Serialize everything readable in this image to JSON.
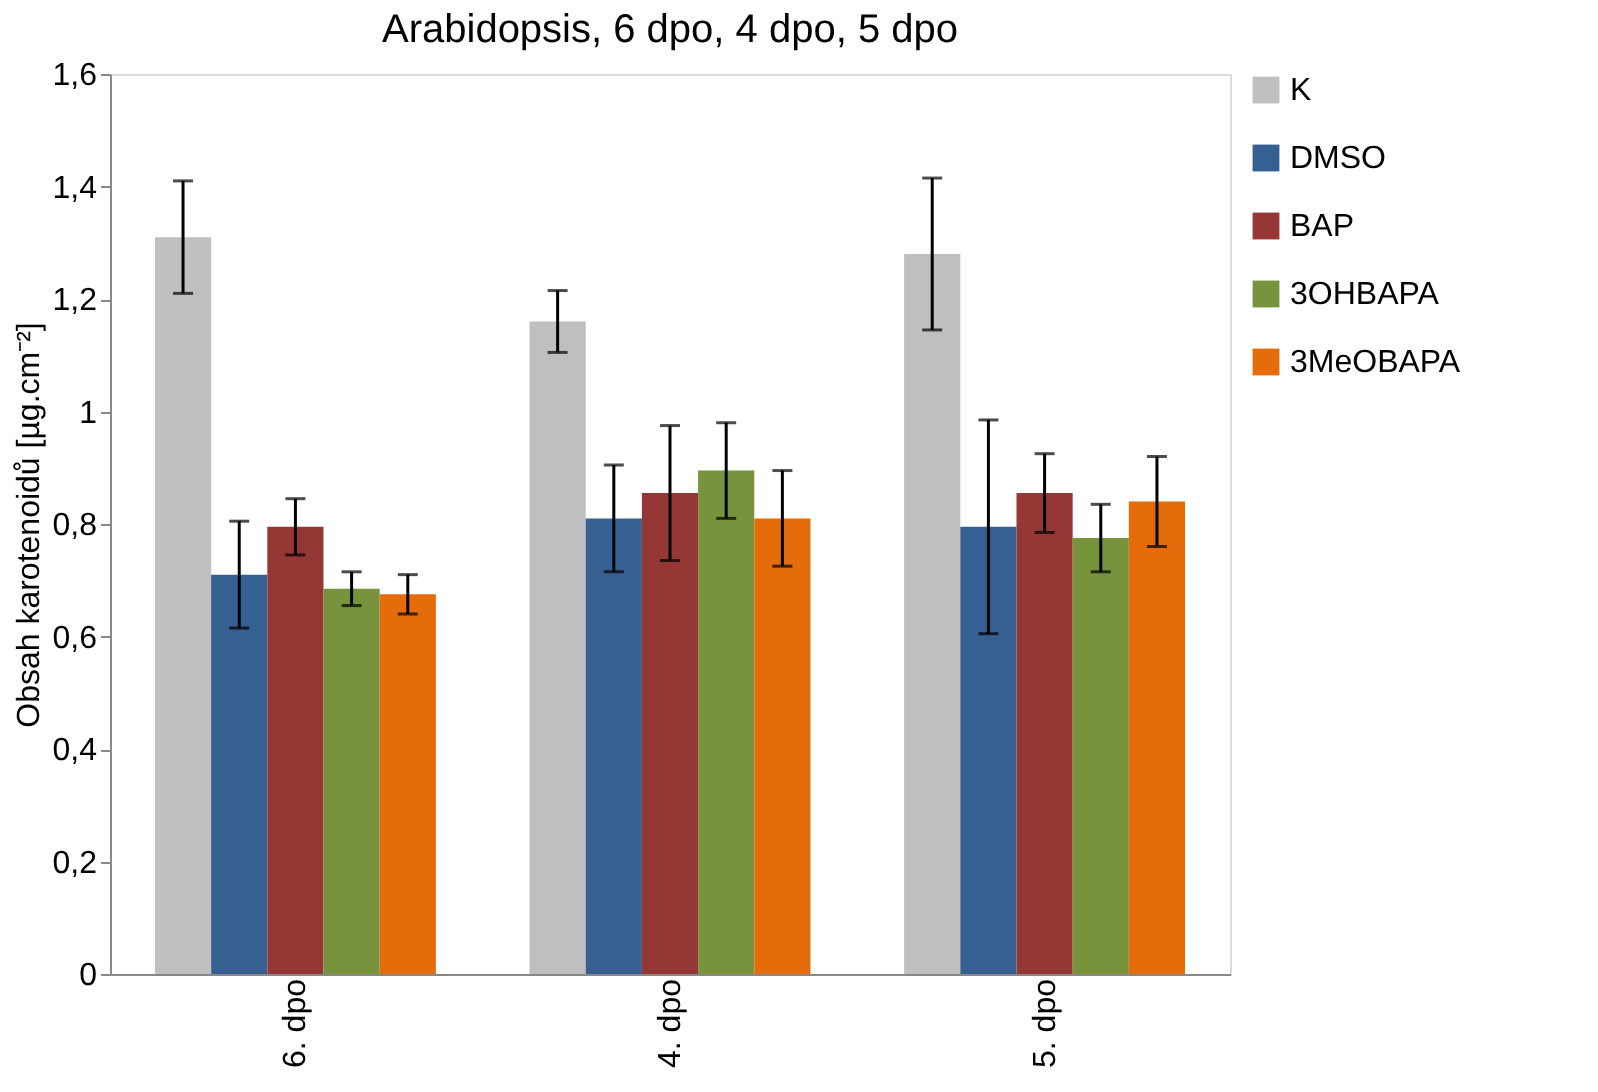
{
  "chart_data": {
    "type": "bar",
    "title": "Arabidopsis, 6 dpo, 4 dpo, 5 dpo",
    "ylabel": "Obsah karotenoidů [µg.cm⁻²]",
    "categories": [
      "6. dpo",
      "4. dpo",
      "5. dpo"
    ],
    "series": [
      {
        "name": "K",
        "color": "#bfbfbf",
        "values": [
          1.31,
          1.16,
          1.28
        ],
        "errors": [
          0.1,
          0.055,
          0.135
        ]
      },
      {
        "name": "DMSO",
        "color": "#376092",
        "values": [
          0.71,
          0.81,
          0.795
        ],
        "errors": [
          0.095,
          0.095,
          0.19
        ]
      },
      {
        "name": "BAP",
        "color": "#953735",
        "values": [
          0.795,
          0.855,
          0.855
        ],
        "errors": [
          0.05,
          0.12,
          0.07
        ]
      },
      {
        "name": "3OHBAPA",
        "color": "#77933c",
        "values": [
          0.685,
          0.895,
          0.775
        ],
        "errors": [
          0.03,
          0.085,
          0.06
        ]
      },
      {
        "name": "3MeOBAPA",
        "color": "#e46c0a",
        "values": [
          0.675,
          0.81,
          0.84
        ],
        "errors": [
          0.035,
          0.085,
          0.08
        ]
      }
    ],
    "ylim": [
      0,
      1.6
    ],
    "yticks": [
      0,
      {
        "value": 0.2,
        "label": "0,2"
      },
      {
        "value": 0.4,
        "label": "0,4"
      },
      {
        "value": 0.6,
        "label": "0,6"
      },
      {
        "value": 0.8,
        "label": "0,8"
      },
      1,
      {
        "value": 1.2,
        "label": "1,2"
      },
      {
        "value": 1.4,
        "label": "1,4"
      },
      {
        "value": 1.6,
        "label": "1,6"
      }
    ],
    "grid": false,
    "legend": "right"
  }
}
